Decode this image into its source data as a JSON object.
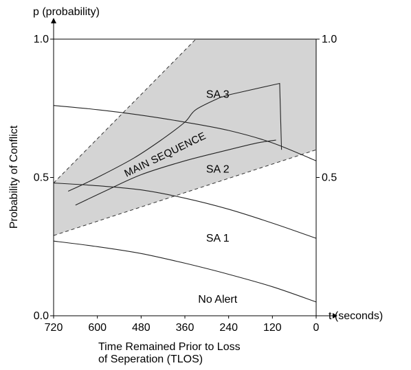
{
  "chart_data": {
    "type": "line",
    "y_axis_title": "p (probability)",
    "ylabel": "Probability of Conflict",
    "x_axis_unit_label": "t (seconds)",
    "xlabel_lines": [
      "Time Remained Prior to Loss",
      "of Seperation (TLOS)"
    ],
    "x_ticks": [
      720,
      600,
      480,
      360,
      240,
      120,
      0
    ],
    "xlim": [
      720,
      0
    ],
    "ylim": [
      0,
      1
    ],
    "y_ticks_left": [
      "0.0",
      "0.5",
      "1.0"
    ],
    "y_ticks_right": [
      "0.5",
      "1.0"
    ],
    "shaded_region": {
      "upper": [
        [
          720,
          0.48
        ],
        [
          330,
          1.0
        ],
        [
          0,
          1.0
        ]
      ],
      "lower": [
        [
          720,
          0.29
        ],
        [
          0,
          0.6
        ]
      ]
    },
    "boundary_curves": [
      {
        "points": [
          [
            720,
            0.27
          ],
          [
            600,
            0.25
          ],
          [
            480,
            0.225
          ],
          [
            360,
            0.19
          ],
          [
            240,
            0.15
          ],
          [
            120,
            0.105
          ],
          [
            0,
            0.05
          ]
        ]
      },
      {
        "points": [
          [
            720,
            0.48
          ],
          [
            600,
            0.47
          ],
          [
            480,
            0.455
          ],
          [
            360,
            0.425
          ],
          [
            240,
            0.385
          ],
          [
            120,
            0.335
          ],
          [
            0,
            0.28
          ]
        ]
      },
      {
        "points": [
          [
            720,
            0.76
          ],
          [
            600,
            0.745
          ],
          [
            480,
            0.725
          ],
          [
            360,
            0.7
          ],
          [
            240,
            0.67
          ],
          [
            120,
            0.625
          ],
          [
            0,
            0.56
          ]
        ]
      }
    ],
    "region_labels": [
      {
        "text": "SA 3",
        "x": 270,
        "y": 0.8
      },
      {
        "text": "SA 2",
        "x": 270,
        "y": 0.53
      },
      {
        "text": "SA 1",
        "x": 270,
        "y": 0.28
      },
      {
        "text": "No Alert",
        "x": 270,
        "y": 0.06
      }
    ],
    "main_sequence": {
      "label": "MAIN SEQUENCE",
      "lower_curve": [
        [
          660,
          0.4
        ],
        [
          580,
          0.45
        ],
        [
          480,
          0.51
        ],
        [
          360,
          0.56
        ],
        [
          240,
          0.6
        ],
        [
          160,
          0.625
        ],
        [
          110,
          0.635
        ]
      ],
      "upper_curve": [
        [
          680,
          0.45
        ],
        [
          600,
          0.5
        ],
        [
          500,
          0.57
        ],
        [
          420,
          0.64
        ],
        [
          360,
          0.7
        ],
        [
          330,
          0.745
        ],
        [
          265,
          0.788
        ],
        [
          260,
          0.79
        ]
      ],
      "arrow_tip": [
        100,
        0.84
      ],
      "notch": [
        235,
        0.8
      ],
      "arrow_bottom": [
        95,
        0.6
      ]
    }
  }
}
